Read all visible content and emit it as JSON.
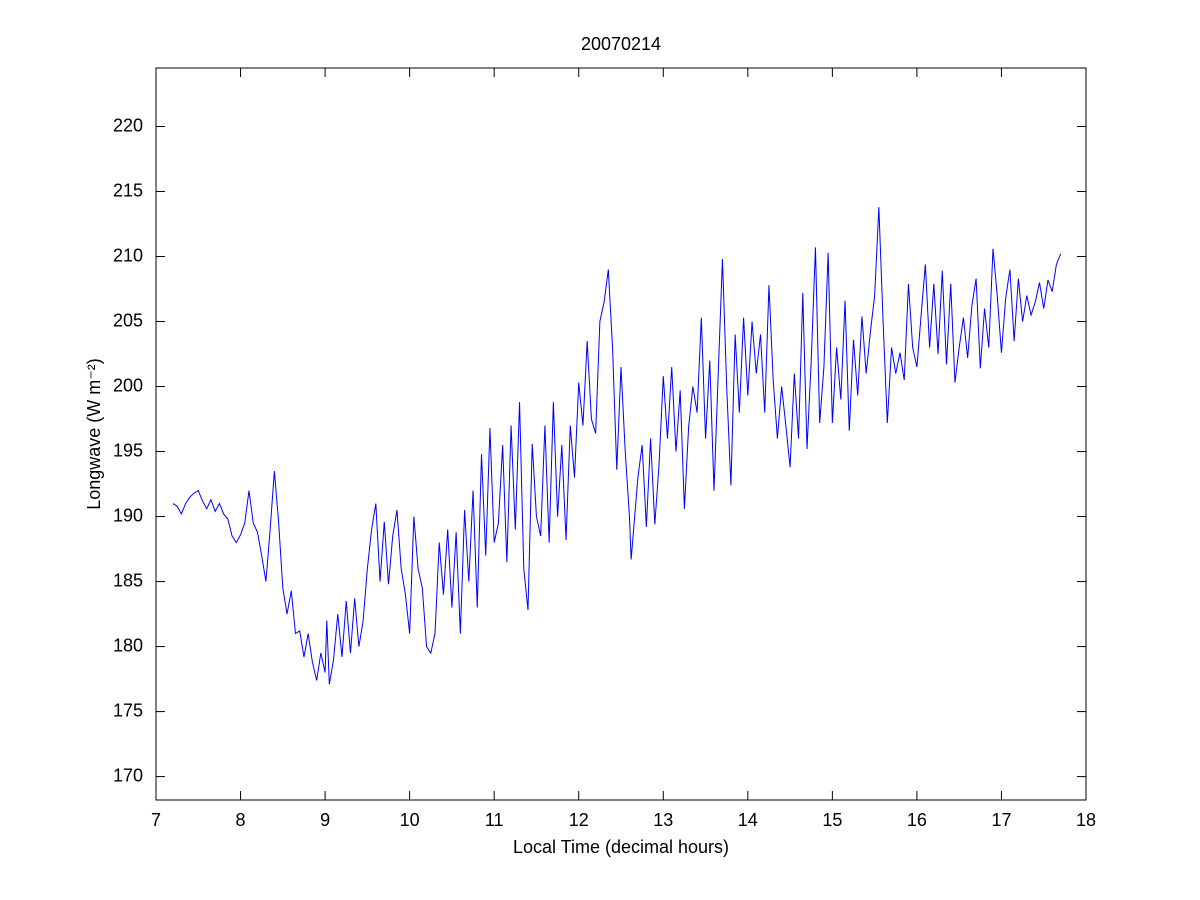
{
  "chart_data": {
    "type": "line",
    "title": "20070214",
    "x_label": "Local Time (decimal hours)",
    "y_label": "Longwave (W m⁻²)",
    "xlim": [
      7,
      18
    ],
    "xticks": [
      7,
      8,
      9,
      10,
      11,
      12,
      13,
      14,
      15,
      16,
      17,
      18
    ],
    "ylim": [
      168.2,
      224.5
    ],
    "yticks": [
      170,
      175,
      180,
      185,
      190,
      195,
      200,
      205,
      210,
      215,
      220
    ],
    "grid": false,
    "x": [
      7.2,
      7.25,
      7.3,
      7.35,
      7.4,
      7.45,
      7.5,
      7.55,
      7.6,
      7.65,
      7.7,
      7.75,
      7.8,
      7.85,
      7.9,
      7.95,
      8.0,
      8.05,
      8.1,
      8.15,
      8.2,
      8.25,
      8.3,
      8.35,
      8.4,
      8.45,
      8.5,
      8.55,
      8.6,
      8.65,
      8.7,
      8.75,
      8.8,
      8.85,
      8.9,
      8.95,
      9.0,
      9.02,
      9.05,
      9.1,
      9.15,
      9.2,
      9.25,
      9.3,
      9.35,
      9.4,
      9.45,
      9.5,
      9.55,
      9.6,
      9.65,
      9.7,
      9.75,
      9.8,
      9.85,
      9.9,
      9.95,
      10.0,
      10.05,
      10.1,
      10.15,
      10.2,
      10.25,
      10.3,
      10.35,
      10.4,
      10.45,
      10.5,
      10.55,
      10.6,
      10.65,
      10.7,
      10.75,
      10.8,
      10.85,
      10.9,
      10.95,
      11.0,
      11.05,
      11.1,
      11.15,
      11.2,
      11.25,
      11.3,
      11.35,
      11.4,
      11.45,
      11.5,
      11.55,
      11.6,
      11.65,
      11.7,
      11.75,
      11.8,
      11.85,
      11.9,
      11.95,
      12.0,
      12.05,
      12.1,
      12.15,
      12.2,
      12.25,
      12.3,
      12.35,
      12.4,
      12.45,
      12.5,
      12.55,
      12.6,
      12.62,
      12.7,
      12.75,
      12.8,
      12.85,
      12.9,
      12.95,
      13.0,
      13.05,
      13.1,
      13.15,
      13.2,
      13.25,
      13.3,
      13.35,
      13.4,
      13.45,
      13.5,
      13.55,
      13.6,
      13.65,
      13.7,
      13.75,
      13.8,
      13.85,
      13.9,
      13.95,
      14.0,
      14.05,
      14.1,
      14.15,
      14.2,
      14.25,
      14.3,
      14.35,
      14.4,
      14.45,
      14.5,
      14.55,
      14.6,
      14.65,
      14.7,
      14.75,
      14.8,
      14.85,
      14.9,
      14.95,
      15.0,
      15.05,
      15.1,
      15.15,
      15.2,
      15.25,
      15.3,
      15.35,
      15.4,
      15.45,
      15.5,
      15.55,
      15.6,
      15.65,
      15.7,
      15.75,
      15.8,
      15.85,
      15.9,
      15.95,
      16.0,
      16.05,
      16.1,
      16.15,
      16.2,
      16.25,
      16.3,
      16.35,
      16.4,
      16.45,
      16.5,
      16.55,
      16.6,
      16.65,
      16.7,
      16.75,
      16.8,
      16.85,
      16.9,
      16.95,
      17.0,
      17.05,
      17.1,
      17.15,
      17.2,
      17.25,
      17.3,
      17.35,
      17.4,
      17.45,
      17.5,
      17.55,
      17.6,
      17.65,
      17.7
    ],
    "series": [
      {
        "color": "#0000ff",
        "values": [
          191,
          190.8,
          190.2,
          191,
          191.5,
          191.8,
          192,
          191.2,
          190.6,
          191.3,
          190.4,
          191,
          190.2,
          189.8,
          188.5,
          188,
          188.6,
          189.5,
          192,
          189.5,
          188.8,
          187,
          185,
          189,
          193.5,
          189.6,
          184.5,
          182.5,
          184.3,
          181,
          181.2,
          179.2,
          181,
          178.8,
          177.4,
          179.5,
          178,
          182,
          177.1,
          179,
          182.5,
          179.2,
          183.5,
          179.5,
          183.7,
          180,
          182,
          186,
          189,
          191,
          185,
          189.6,
          184.8,
          188.5,
          190.5,
          186,
          184,
          181,
          190,
          186,
          184.5,
          180,
          179.5,
          181,
          188,
          184,
          189,
          183,
          188.8,
          181,
          190.5,
          185,
          192,
          183,
          194.8,
          187,
          196.8,
          188,
          189.5,
          195.5,
          186.5,
          197,
          189,
          198.8,
          186,
          182.8,
          195.6,
          190,
          188.5,
          197,
          188,
          198.8,
          190,
          195.5,
          188.2,
          197,
          193,
          200.3,
          197,
          203.5,
          197.5,
          196.4,
          205,
          206.5,
          209,
          203,
          193.6,
          201.5,
          195,
          190,
          186.7,
          193,
          195.5,
          189.2,
          196,
          189.4,
          194,
          200.8,
          196,
          201.5,
          195,
          199.7,
          190.6,
          196.9,
          200,
          198,
          205.3,
          196,
          202,
          192,
          201,
          209.8,
          200,
          192.4,
          204,
          198,
          205.3,
          199.3,
          205,
          201,
          204,
          198,
          207.8,
          200.5,
          196,
          200,
          197,
          193.8,
          201,
          196,
          207.2,
          195.2,
          202,
          210.7,
          197.2,
          201.5,
          210.3,
          197.2,
          203,
          199,
          206.6,
          196.6,
          203.6,
          199.3,
          205.4,
          201,
          204.2,
          207,
          213.8,
          205,
          197.2,
          203,
          201,
          202.6,
          200.5,
          207.9,
          203,
          201.5,
          205.5,
          209.4,
          203,
          207.9,
          202.5,
          208.9,
          201.7,
          207.9,
          200.3,
          203,
          205.3,
          202.2,
          206.2,
          208.3,
          201.4,
          206,
          203,
          210.6,
          207,
          202.6,
          206.8,
          209,
          203.5,
          208.3,
          205,
          207,
          205.5,
          206.5,
          208,
          206,
          208.2,
          207.3,
          209.4,
          210.2
        ]
      }
    ]
  }
}
